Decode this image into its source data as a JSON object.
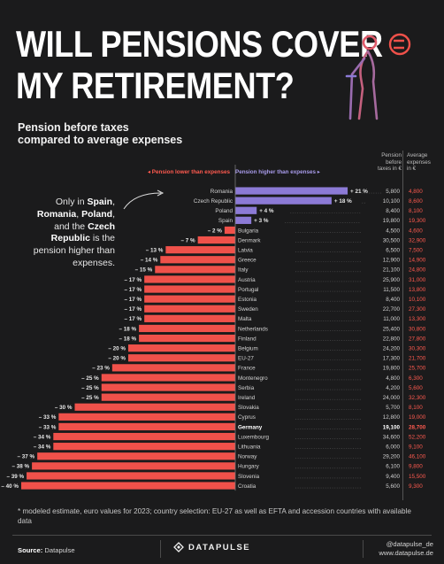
{
  "header": {
    "title_line1": "WILL PENSIONS COVER",
    "title_line2": "MY RETIREMENT?",
    "subtitle_line1": "Pension before taxes",
    "subtitle_line2": "compared to average expenses"
  },
  "legend": {
    "lower": "◂  Pension lower than expenses",
    "higher": "Pension higher than expenses  ▸"
  },
  "columns": {
    "pension_line1": "Pension",
    "pension_line2": "before",
    "pension_line3": "taxes in €",
    "expenses_line1": "Average",
    "expenses_line2": "expenses",
    "expenses_line3": "in €"
  },
  "annotation": {
    "t1": "Only in ",
    "b1": "Spain",
    "t2": ",",
    "b2": "Romania",
    "t3": ", ",
    "b3": "Poland",
    "t4": ",",
    "t5": "and the ",
    "b4": "Czech Republic",
    "t6": " is the pension higher than expenses."
  },
  "footnote": "* modeled estimate, euro values for 2023; country selection: EU-27 as well as EFTA and accession countries with available data",
  "footer": {
    "source_label": "Source:",
    "source_value": "Datapulse",
    "brand": "DATAPULSE",
    "handle1": "@datapulse_de",
    "handle2": "www.datapulse.de"
  },
  "colors": {
    "negative": "#f0514a",
    "positive": "#8c7ad6",
    "pension_text": "#cfcfcf",
    "expense_text": "#ff5a4f",
    "highlight_text": "#ffffff",
    "icon_stroke": "#f0514a",
    "icon_stroke_alt": "#8c7ad6"
  },
  "chart_data": {
    "type": "bar",
    "orientation": "horizontal",
    "value_unit": "%",
    "highlight": "Germany",
    "categories": [
      "Romania",
      "Czech Republic",
      "Poland",
      "Spain",
      "Bulgaria",
      "Denmark",
      "Latvia",
      "Greece",
      "Italy",
      "Austria",
      "Portugal",
      "Estonia",
      "Sweden",
      "Malta",
      "Netherlands",
      "Finland",
      "Belgium",
      "EU-27",
      "France",
      "Montenegro",
      "Serbia",
      "Ireland",
      "Slovakia",
      "Cyprus",
      "Germany",
      "Luxembourg",
      "Lithuania",
      "Norway",
      "Hungary",
      "Slovenia",
      "Croatia"
    ],
    "values": [
      21,
      18,
      4,
      3,
      -2,
      -7,
      -13,
      -14,
      -15,
      -17,
      -17,
      -17,
      -17,
      -17,
      -18,
      -18,
      -20,
      -20,
      -23,
      -25,
      -25,
      -25,
      -30,
      -33,
      -33,
      -34,
      -34,
      -37,
      -38,
      -39,
      -40
    ],
    "labels": [
      "+ 21 %",
      "+ 18 %",
      "+ 4 %",
      "+ 3 %",
      "– 2 %",
      "– 7 %",
      "– 13 %",
      "– 14 %",
      "– 15 %",
      "– 17 %",
      "– 17 %",
      "– 17 %",
      "– 17 %",
      "– 17 %",
      "– 18 %",
      "– 18 %",
      "– 20 %",
      "– 20 %",
      "– 23 %",
      "– 25 %",
      "– 25 %",
      "– 25 %",
      "– 30 %",
      "– 33 %",
      "– 33 %",
      "– 34 %",
      "– 34 %",
      "– 37 %",
      "– 38 %",
      "– 39 %",
      "– 40 %"
    ],
    "pension": [
      "5,800",
      "10,100",
      "8,400",
      "19,800",
      "4,500",
      "30,500",
      "6,500",
      "12,900",
      "21,100",
      "25,900",
      "11,500",
      "8,400",
      "22,700",
      "11,000",
      "25,400",
      "22,800",
      "24,200",
      "17,300",
      "19,800",
      "4,800",
      "4,200",
      "24,000",
      "5,700",
      "12,800",
      "19,100",
      "34,600",
      "6,000",
      "29,200",
      "6,100",
      "9,400",
      "5,600"
    ],
    "expenses": [
      "4,800",
      "8,600",
      "8,100",
      "19,300",
      "4,600",
      "32,900",
      "7,500",
      "14,900",
      "24,800",
      "31,000",
      "13,800",
      "10,100",
      "27,300",
      "13,300",
      "30,800",
      "27,800",
      "30,300",
      "21,700",
      "25,700",
      "6,300",
      "5,600",
      "32,300",
      "8,100",
      "19,000",
      "28,700",
      "52,200",
      "9,100",
      "46,100",
      "9,800",
      "15,500",
      "9,300"
    ]
  }
}
